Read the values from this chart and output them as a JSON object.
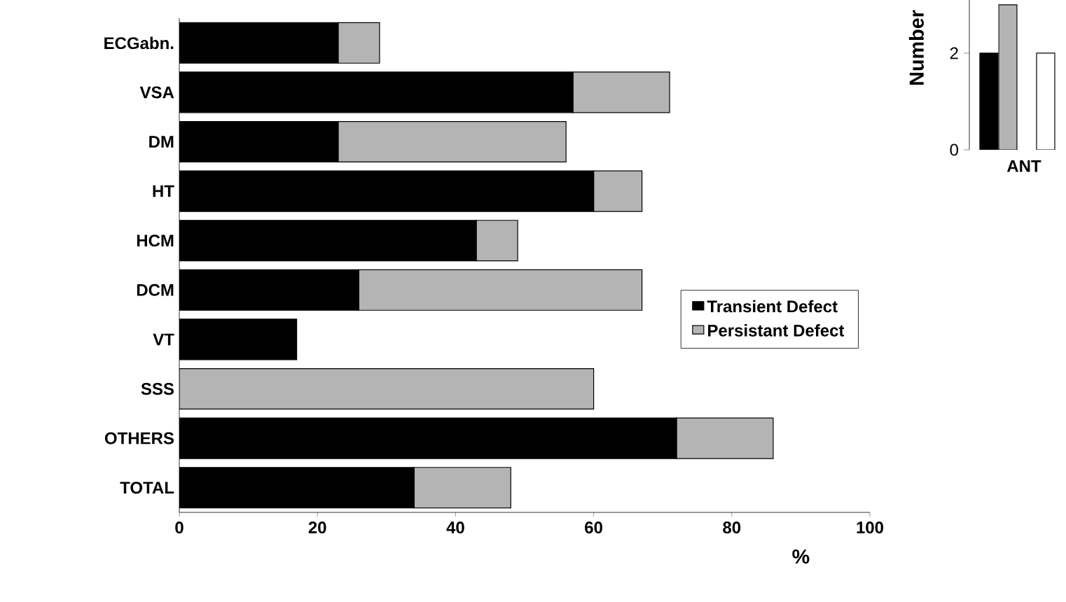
{
  "chart_data": [
    {
      "type": "bar",
      "orientation": "horizontal",
      "stacked": true,
      "xlabel": "%",
      "categories": [
        "ECGabn.",
        "VSA",
        "DM",
        "HT",
        "HCM",
        "DCM",
        "VT",
        "SSS",
        "OTHERS",
        "TOTAL"
      ],
      "series": [
        {
          "name": "Transient Defect",
          "color": "#000000",
          "values": [
            23,
            57,
            23,
            60,
            43,
            26,
            17,
            0,
            72,
            34
          ]
        },
        {
          "name": "Persistant Defect",
          "color": "#b4b4b4",
          "values": [
            6,
            14,
            33,
            7,
            6,
            41,
            0,
            60,
            14,
            14
          ]
        }
      ],
      "xlim": [
        0,
        100
      ],
      "xticks": [
        0,
        20,
        40,
        60,
        80,
        100
      ],
      "legend": "right"
    },
    {
      "type": "bar",
      "ylabel": "Number",
      "categories": [
        "ANT"
      ],
      "series": [
        {
          "color": "#000000",
          "values": [
            2
          ]
        },
        {
          "color": "#b4b4b4",
          "values": [
            3
          ]
        },
        {
          "color": "#ffffff",
          "values": [
            2
          ]
        }
      ],
      "ylim": [
        0,
        3.1
      ],
      "yticks": [
        0,
        2
      ]
    }
  ]
}
